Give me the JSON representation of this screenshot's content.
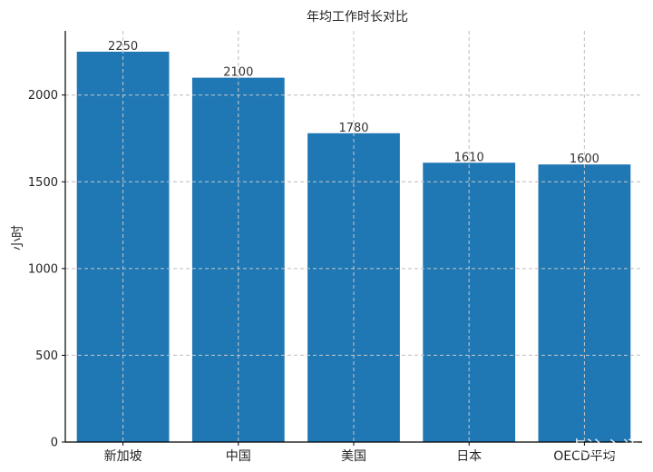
{
  "chart_data": {
    "type": "bar",
    "title": "年均工作时长对比",
    "xlabel": "",
    "ylabel": "小时",
    "categories": [
      "新加坡",
      "中国",
      "美国",
      "日本",
      "OECD平均"
    ],
    "values": [
      2250,
      2100,
      1780,
      1610,
      1600
    ],
    "data_labels": [
      "2250",
      "2100",
      "1780",
      "1610",
      "1600"
    ],
    "ylim": [
      0,
      2370
    ],
    "yticks": [
      0,
      500,
      1000,
      1500,
      2000
    ],
    "ytick_labels": [
      "0",
      "500",
      "1000",
      "1500",
      "2000"
    ],
    "grid": true,
    "bar_color": "#1f77b4"
  },
  "watermark": "一点沁心语"
}
